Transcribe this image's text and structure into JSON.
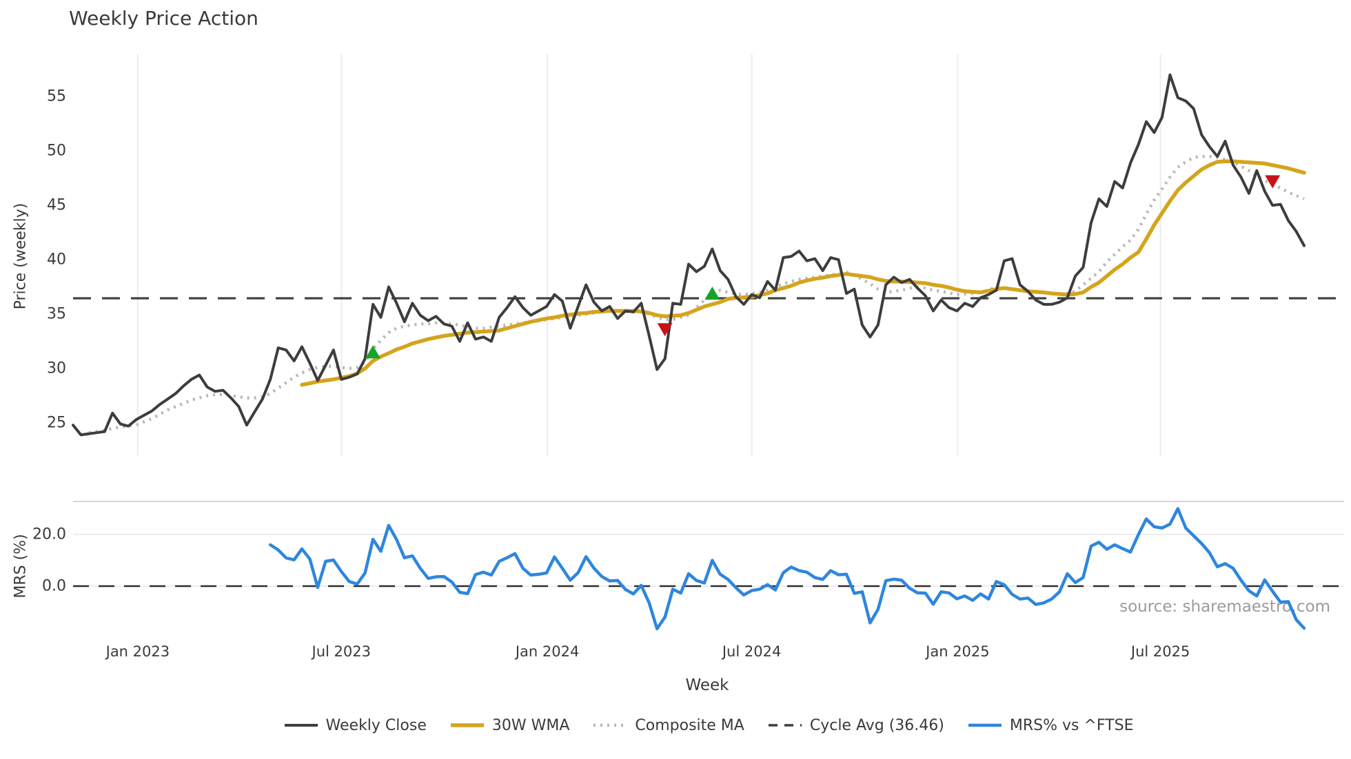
{
  "title": "Weekly Price Action",
  "xlabel": "Week",
  "source": "source: sharemaestro.com",
  "price_panel": {
    "ylabel": "Price (weekly)",
    "ytick_labels": [
      "55",
      "50",
      "45",
      "40",
      "35",
      "30",
      "25"
    ],
    "ytick_values": [
      55,
      50,
      45,
      40,
      35,
      30,
      25
    ]
  },
  "mrs_panel": {
    "ylabel": "MRS (%)",
    "ytick_labels": [
      "20.0",
      "0.0"
    ],
    "ytick_values": [
      20,
      0
    ]
  },
  "x_ticks": [
    {
      "label": "Jan 2023",
      "week": 8.2
    },
    {
      "label": "Jul 2023",
      "week": 34.0
    },
    {
      "label": "Jan 2024",
      "week": 60.1
    },
    {
      "label": "Jul 2024",
      "week": 86.0
    },
    {
      "label": "Jan 2025",
      "week": 112.1
    },
    {
      "label": "Jul 2025",
      "week": 137.8
    }
  ],
  "legend": [
    {
      "label": "Weekly Close",
      "color": "#3d3d3d",
      "style": "solid",
      "width": 4
    },
    {
      "label": "30W WMA",
      "color": "#d5a41d",
      "style": "solid",
      "width": 5.5
    },
    {
      "label": "Composite MA",
      "color": "#b8b8b8",
      "style": "dotted",
      "width": 4.5
    },
    {
      "label": "Cycle Avg (36.46)",
      "color": "#3c3c3c",
      "style": "dashed",
      "width": 3.5
    },
    {
      "label": "MRS% vs ^FTSE",
      "color": "#2e86de",
      "style": "solid",
      "width": 4.5
    }
  ],
  "colors": {
    "weekly_close": "#3d3d3d",
    "wma30": "#d5a41d",
    "composite": "#b8b8b8",
    "cycle_avg": "#3c3c3c",
    "mrs": "#2e86de",
    "buy_marker": "#17a327",
    "sell_marker": "#c91214",
    "gridline": "#ededf1",
    "mrs_spine": "#c9c9c9",
    "source_text": "#9b9b9b"
  },
  "chart_data": [
    {
      "type": "line",
      "panel": "price",
      "title": "Weekly Price Action",
      "ylabel": "Price (weekly)",
      "ylim": [
        22.0,
        58.8
      ],
      "cycle_avg": 36.46,
      "weeks": 157,
      "grid": "vertical-only",
      "legend_position": "bottom",
      "series": [
        {
          "name": "Weekly Close",
          "values": [
            24.8,
            23.9,
            24.0,
            24.1,
            24.2,
            25.9,
            24.9,
            24.7,
            25.3,
            25.7,
            26.1,
            26.7,
            27.2,
            27.7,
            28.4,
            29.0,
            29.4,
            28.3,
            27.9,
            28.0,
            27.3,
            26.5,
            24.8,
            26.0,
            27.2,
            29.0,
            31.9,
            31.7,
            30.7,
            32.0,
            30.5,
            28.9,
            30.3,
            31.7,
            29.0,
            29.2,
            29.5,
            30.9,
            35.9,
            34.7,
            37.5,
            36.0,
            34.3,
            36.0,
            34.9,
            34.4,
            34.8,
            34.1,
            33.9,
            32.5,
            34.2,
            32.7,
            32.9,
            32.5,
            34.7,
            35.6,
            36.6,
            35.6,
            34.9,
            35.3,
            35.7,
            36.8,
            36.2,
            33.7,
            35.7,
            37.7,
            36.1,
            35.3,
            35.7,
            34.6,
            35.3,
            35.2,
            36.0,
            33.0,
            29.9,
            30.9,
            36.0,
            35.9,
            39.6,
            38.9,
            39.4,
            41.0,
            39.0,
            38.2,
            36.6,
            35.9,
            36.8,
            36.5,
            38.0,
            37.2,
            40.2,
            40.3,
            40.8,
            39.9,
            40.1,
            39.0,
            40.2,
            40.0,
            36.9,
            37.3,
            34.0,
            32.9,
            34.0,
            37.7,
            38.4,
            37.9,
            38.2,
            37.4,
            36.7,
            35.3,
            36.3,
            35.6,
            35.3,
            36.0,
            35.7,
            36.5,
            36.8,
            37.2,
            39.9,
            40.1,
            37.7,
            37.1,
            36.3,
            35.9,
            35.9,
            36.1,
            36.5,
            38.5,
            39.3,
            43.4,
            45.6,
            44.9,
            47.2,
            46.6,
            48.9,
            50.6,
            52.7,
            51.7,
            53.1,
            57.0,
            54.9,
            54.6,
            53.9,
            51.5,
            50.4,
            49.5,
            50.9,
            48.7,
            47.6,
            46.1,
            48.2,
            46.3,
            45.0,
            45.1,
            43.6,
            42.6,
            41.3
          ]
        },
        {
          "name": "30W WMA",
          "values": [
            null,
            null,
            null,
            null,
            null,
            null,
            null,
            null,
            null,
            null,
            null,
            null,
            null,
            null,
            null,
            null,
            null,
            null,
            null,
            null,
            null,
            null,
            null,
            null,
            null,
            null,
            null,
            null,
            null,
            28.5,
            28.65,
            28.8,
            28.9,
            29.0,
            29.15,
            29.3,
            29.55,
            30.0,
            30.7,
            31.1,
            31.4,
            31.75,
            32.0,
            32.3,
            32.5,
            32.7,
            32.85,
            33.0,
            33.1,
            33.2,
            33.3,
            33.35,
            33.4,
            33.45,
            33.5,
            33.7,
            33.9,
            34.1,
            34.3,
            34.45,
            34.6,
            34.7,
            34.85,
            34.95,
            35.05,
            35.1,
            35.2,
            35.25,
            35.3,
            35.3,
            35.3,
            35.3,
            35.25,
            35.1,
            34.9,
            34.8,
            34.85,
            34.9,
            35.1,
            35.4,
            35.7,
            35.9,
            36.1,
            36.4,
            36.5,
            36.55,
            36.6,
            36.75,
            36.9,
            37.2,
            37.4,
            37.6,
            37.9,
            38.1,
            38.25,
            38.35,
            38.5,
            38.6,
            38.7,
            38.6,
            38.5,
            38.4,
            38.2,
            38.05,
            38.0,
            38.0,
            37.95,
            37.9,
            37.85,
            37.7,
            37.6,
            37.45,
            37.25,
            37.1,
            37.05,
            37.0,
            37.15,
            37.3,
            37.4,
            37.3,
            37.2,
            37.1,
            37.05,
            37.0,
            36.9,
            36.85,
            36.8,
            36.85,
            37.0,
            37.5,
            37.9,
            38.5,
            39.1,
            39.6,
            40.2,
            40.7,
            41.9,
            43.2,
            44.3,
            45.4,
            46.4,
            47.1,
            47.7,
            48.3,
            48.7,
            49.0,
            49.05,
            49.05,
            49.0,
            48.95,
            48.9,
            48.85,
            48.7,
            48.55,
            48.4,
            48.2,
            48.0
          ]
        },
        {
          "name": "Composite MA",
          "values": [
            null,
            null,
            24.1,
            24.2,
            24.3,
            24.5,
            24.6,
            24.7,
            24.8,
            25.1,
            25.4,
            25.8,
            26.2,
            26.5,
            26.8,
            27.1,
            27.3,
            27.5,
            27.6,
            27.6,
            27.5,
            27.4,
            27.3,
            27.3,
            27.4,
            27.7,
            28.2,
            28.7,
            29.2,
            29.6,
            29.9,
            30.1,
            30.2,
            30.2,
            30.1,
            30.0,
            30.1,
            30.6,
            31.8,
            32.6,
            33.3,
            33.7,
            33.9,
            34.0,
            34.1,
            34.1,
            34.2,
            34.2,
            34.1,
            34.0,
            33.8,
            33.7,
            33.7,
            33.8,
            33.9,
            34.0,
            34.1,
            34.2,
            34.3,
            34.4,
            34.5,
            34.6,
            34.7,
            34.75,
            34.9,
            35.0,
            35.1,
            35.2,
            35.3,
            35.3,
            35.25,
            35.2,
            35.2,
            35.0,
            34.7,
            34.5,
            34.5,
            34.7,
            34.9,
            35.6,
            36.3,
            36.9,
            37.2,
            37.0,
            36.85,
            36.8,
            36.9,
            37.0,
            37.2,
            37.5,
            37.8,
            38.0,
            38.2,
            38.3,
            38.4,
            38.5,
            38.6,
            38.75,
            38.85,
            38.6,
            38.2,
            37.8,
            37.3,
            37.0,
            37.1,
            37.2,
            37.4,
            37.5,
            37.4,
            37.2,
            37.1,
            36.95,
            36.8,
            36.85,
            36.9,
            37.0,
            37.2,
            37.5,
            37.4,
            37.3,
            37.2,
            37.1,
            37.0,
            36.95,
            36.9,
            36.85,
            36.9,
            37.1,
            37.7,
            38.3,
            38.9,
            39.8,
            40.5,
            41.2,
            41.8,
            42.8,
            44.2,
            45.5,
            46.5,
            47.6,
            48.5,
            49.0,
            49.4,
            49.5,
            49.5,
            49.4,
            49.2,
            49.0,
            48.6,
            48.2,
            47.7,
            47.3,
            46.9,
            46.6,
            46.2,
            45.9,
            45.6
          ]
        }
      ],
      "markers": {
        "buy": [
          {
            "week": 38,
            "y": 31.5
          },
          {
            "week": 81,
            "y": 36.9
          }
        ],
        "sell": [
          {
            "week": 75,
            "y": 33.6
          },
          {
            "week": 152,
            "y": 47.2
          }
        ]
      }
    },
    {
      "type": "line",
      "panel": "mrs",
      "ylabel": "MRS (%)",
      "ylim": [
        -18.5,
        32.8
      ],
      "zero_line": 0,
      "series": [
        {
          "name": "MRS% vs ^FTSE",
          "values": [
            null,
            null,
            null,
            null,
            null,
            null,
            null,
            null,
            null,
            null,
            null,
            null,
            null,
            null,
            null,
            null,
            null,
            null,
            null,
            null,
            null,
            null,
            null,
            null,
            null,
            16.0,
            14.0,
            10.9,
            10.2,
            14.4,
            10.5,
            -0.5,
            9.6,
            10.1,
            5.6,
            1.8,
            0.8,
            5.1,
            18.1,
            13.5,
            23.5,
            18.0,
            11.0,
            11.7,
            6.9,
            3.0,
            3.6,
            3.7,
            1.6,
            -2.4,
            -2.9,
            4.5,
            5.4,
            4.3,
            9.6,
            11.0,
            12.6,
            6.9,
            4.3,
            4.6,
            5.1,
            11.3,
            6.9,
            2.3,
            5.2,
            11.4,
            7.0,
            3.7,
            2.0,
            2.2,
            -1.3,
            -3.0,
            0.3,
            -6.5,
            -16.5,
            -12.0,
            -1.2,
            -2.7,
            4.8,
            2.2,
            1.2,
            10.0,
            4.6,
            2.6,
            -0.6,
            -3.4,
            -1.7,
            -1.2,
            0.6,
            -1.5,
            5.2,
            7.4,
            6.0,
            5.4,
            3.3,
            2.6,
            6.0,
            4.4,
            4.6,
            -2.8,
            -2.2,
            -14.2,
            -9.0,
            2.1,
            2.7,
            2.3,
            -0.8,
            -2.6,
            -2.7,
            -7.0,
            -2.2,
            -2.6,
            -4.9,
            -3.8,
            -5.5,
            -3.0,
            -5.0,
            1.8,
            0.5,
            -3.2,
            -5.0,
            -4.6,
            -7.1,
            -6.5,
            -5.0,
            -2.2,
            4.8,
            1.4,
            3.3,
            15.5,
            17.0,
            14.3,
            16.0,
            14.5,
            13.2,
            20.0,
            26.0,
            23.0,
            22.5,
            24.0,
            30.0,
            22.5,
            19.5,
            16.5,
            13.0,
            7.5,
            8.7,
            6.9,
            2.3,
            -1.8,
            -3.8,
            2.4,
            -2.0,
            -6.2,
            -6.0,
            -13.0,
            -16.3
          ]
        }
      ]
    }
  ]
}
